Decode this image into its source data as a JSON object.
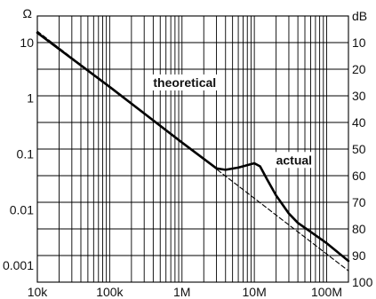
{
  "chart_data": {
    "type": "line",
    "x_scale": "log",
    "y_scale": "log",
    "xlim": [
      10000,
      200000000
    ],
    "ylim": [
      0.0005,
      30
    ],
    "x_ticks": [
      {
        "value": 10000,
        "label": "10k"
      },
      {
        "value": 100000,
        "label": "100k"
      },
      {
        "value": 1000000,
        "label": "1M"
      },
      {
        "value": 10000000,
        "label": "10M"
      },
      {
        "value": 100000000,
        "label": "100M"
      }
    ],
    "y_left_unit": "Ω",
    "y_left_ticks": [
      {
        "value": 10,
        "label": "10"
      },
      {
        "value": 1,
        "label": "1"
      },
      {
        "value": 0.1,
        "label": "0.1"
      },
      {
        "value": 0.01,
        "label": "0.01"
      },
      {
        "value": 0.001,
        "label": "0.001"
      }
    ],
    "y_right_unit": "dB",
    "y_right_ticks": [
      "10",
      "20",
      "30",
      "40",
      "50",
      "60",
      "70",
      "80",
      "90",
      "100"
    ],
    "grid": true,
    "series": [
      {
        "name": "theoretical",
        "style": "dashed",
        "x": [
          10000,
          200000000
        ],
        "y": [
          16,
          0.0008
        ]
      },
      {
        "name": "actual",
        "style": "solid",
        "x": [
          10000,
          100000,
          1000000,
          3000000,
          4000000,
          6000000,
          10000000,
          12000000,
          15000000,
          20000000,
          30000000,
          40000000,
          60000000,
          100000000,
          200000000
        ],
        "y": [
          15,
          1.6,
          0.16,
          0.055,
          0.052,
          0.057,
          0.068,
          0.06,
          0.035,
          0.018,
          0.0085,
          0.0058,
          0.004,
          0.0025,
          0.0012
        ]
      }
    ],
    "annotations": [
      {
        "text": "theoretical",
        "x": 400000,
        "y": 1.6
      },
      {
        "text": "actual",
        "x": 20000000,
        "y": 0.065
      }
    ],
    "colors": {
      "line": "#000000",
      "background": "#ffffff"
    }
  }
}
